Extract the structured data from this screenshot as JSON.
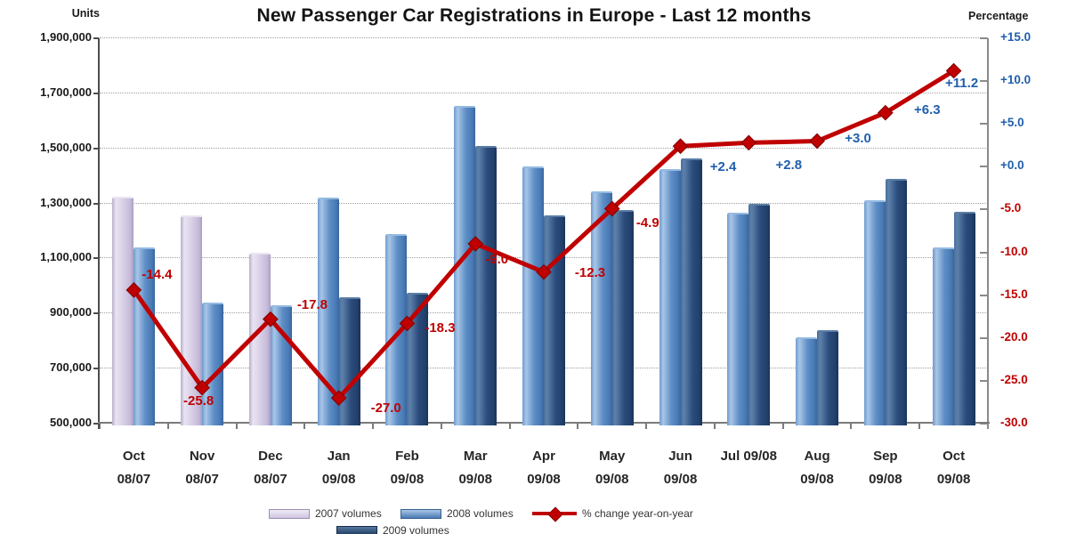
{
  "header": {
    "title": "New Passenger Car Registrations in Europe - Last 12 months",
    "left_axis_title": "Units",
    "right_axis_title": "Percentage"
  },
  "colors": {
    "bar_2007": "#d6cde5",
    "bar_2008": "#5f8fc7",
    "bar_2009": "#2b4c7c",
    "line": "#c00000",
    "positive_text": "#1f5fae",
    "negative_text": "#c00000"
  },
  "chart_data": {
    "type": "bar",
    "subtype": "grouped bars with year-on-year percent change line on secondary axis",
    "title": "New Passenger Car Registrations in Europe - Last 12 months",
    "grid": "dotted horizontal gridlines",
    "legend_position": "bottom",
    "left_axis": {
      "label": "Units",
      "min": 500000,
      "max": 1900000,
      "step": 200000,
      "tick_values": [
        1900000,
        1700000,
        1500000,
        1300000,
        1100000,
        900000,
        700000,
        500000
      ],
      "tick_labels": [
        "1,900,000",
        "1,700,000",
        "1,500,000",
        "1,300,000",
        "1,100,000",
        "900,000",
        "700,000",
        "500,000"
      ]
    },
    "right_axis": {
      "label": "Percentage",
      "min": -30,
      "max": 15,
      "step": 5,
      "tick_values": [
        15,
        10,
        5,
        0,
        -5,
        -10,
        -15,
        -20,
        -25,
        -30
      ],
      "tick_labels": [
        "+15.0",
        "+10.0",
        "+5.0",
        "+0.0",
        "-5.0",
        "-10.0",
        "-15.0",
        "-20.0",
        "-25.0",
        "-30.0"
      ]
    },
    "legend": [
      {
        "label": "2007 volumes",
        "series": "2007"
      },
      {
        "label": "2008 volumes",
        "series": "2008"
      },
      {
        "label": "% change year-on-year",
        "series": "line"
      },
      {
        "label": "2009 volumes",
        "series": "2009"
      }
    ],
    "months": [
      {
        "month": "Oct",
        "period": "08/07",
        "bars": [
          {
            "series": "2007",
            "value": 1325000
          },
          {
            "series": "2008",
            "value": 1140000
          }
        ],
        "change": -14.4,
        "change_label": "-14.4"
      },
      {
        "month": "Nov",
        "period": "08/07",
        "bars": [
          {
            "series": "2007",
            "value": 1255000
          },
          {
            "series": "2008",
            "value": 940000
          }
        ],
        "change": -25.8,
        "change_label": "-25.8"
      },
      {
        "month": "Dec",
        "period": "08/07",
        "bars": [
          {
            "series": "2007",
            "value": 1120000
          },
          {
            "series": "2008",
            "value": 930000
          }
        ],
        "change": -17.8,
        "change_label": "-17.8"
      },
      {
        "month": "Jan",
        "period": "09/08",
        "bars": [
          {
            "series": "2008",
            "value": 1320000
          },
          {
            "series": "2009",
            "value": 960000
          }
        ],
        "change": -27.0,
        "change_label": "-27.0"
      },
      {
        "month": "Feb",
        "period": "09/08",
        "bars": [
          {
            "series": "2008",
            "value": 1190000
          },
          {
            "series": "2009",
            "value": 975000
          }
        ],
        "change": -18.3,
        "change_label": "-18.3"
      },
      {
        "month": "Mar",
        "period": "09/08",
        "bars": [
          {
            "series": "2008",
            "value": 1655000
          },
          {
            "series": "2009",
            "value": 1510000
          }
        ],
        "change": -9.0,
        "change_label": "-9.0"
      },
      {
        "month": "Apr",
        "period": "09/08",
        "bars": [
          {
            "series": "2008",
            "value": 1435000
          },
          {
            "series": "2009",
            "value": 1255000
          }
        ],
        "change": -12.3,
        "change_label": "-12.3"
      },
      {
        "month": "May",
        "period": "09/08",
        "bars": [
          {
            "series": "2008",
            "value": 1345000
          },
          {
            "series": "2009",
            "value": 1275000
          }
        ],
        "change": -4.9,
        "change_label": "-4.9"
      },
      {
        "month": "Jun",
        "period": "09/08",
        "bars": [
          {
            "series": "2008",
            "value": 1425000
          },
          {
            "series": "2009",
            "value": 1465000
          }
        ],
        "change": 2.4,
        "change_label": "+2.4"
      },
      {
        "month": "Jul 09/08",
        "period": "",
        "bars": [
          {
            "series": "2008",
            "value": 1265000
          },
          {
            "series": "2009",
            "value": 1300000
          }
        ],
        "change": 2.8,
        "change_label": "+2.8"
      },
      {
        "month": "Aug",
        "period": "09/08",
        "bars": [
          {
            "series": "2008",
            "value": 815000
          },
          {
            "series": "2009",
            "value": 840000
          }
        ],
        "change": 3.0,
        "change_label": "+3.0"
      },
      {
        "month": "Sep",
        "period": "09/08",
        "bars": [
          {
            "series": "2008",
            "value": 1310000
          },
          {
            "series": "2009",
            "value": 1390000
          }
        ],
        "change": 6.3,
        "change_label": "+6.3"
      },
      {
        "month": "Oct",
        "period": "09/08",
        "bars": [
          {
            "series": "2008",
            "value": 1140000
          },
          {
            "series": "2009",
            "value": 1270000
          }
        ],
        "change": 11.2,
        "change_label": "+11.2"
      }
    ]
  }
}
